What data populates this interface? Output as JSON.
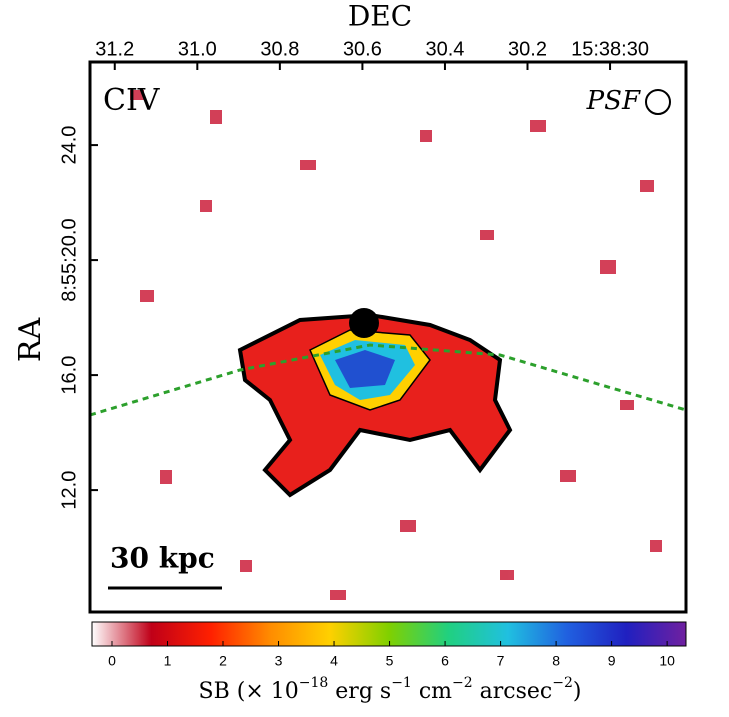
{
  "chart_data": {
    "type": "image",
    "x_label": "DEC",
    "y_label": "RA",
    "xlim": [
      31.26,
      29.816
    ],
    "xticks": [
      31.2,
      {
        "value": 31.0,
        "label": "31.0"
      },
      30.8,
      30.6,
      30.4,
      30.2,
      {
        "value": 30.0,
        "label": "15:38:30"
      }
    ],
    "ylim": [
      7.76,
      26.89
    ],
    "yticks": [
      {
        "value": 24.0,
        "label": "24.0"
      },
      {
        "value": 20.0,
        "label": "8:55:20.0"
      },
      {
        "value": 16.0,
        "label": "16.0"
      },
      {
        "value": 12.0,
        "label": "12.0"
      }
    ],
    "annotations": {
      "line": "CIV",
      "psf": "PSF",
      "scale": "30 kpc"
    },
    "colorbar": {
      "lim": [
        -0.36,
        10.34
      ],
      "ticks": [
        0,
        1,
        2,
        3,
        4,
        5,
        6,
        7,
        8,
        9,
        10
      ],
      "colors": [
        "#ffffff",
        "#c00018",
        "#ff2000",
        "#ff8c00",
        "#ffd000",
        "#80d000",
        "#20d080",
        "#20c0e0",
        "#2060e0",
        "#2020c0",
        "#7020a0"
      ],
      "label": [
        "SB (× 10",
        "−18",
        " erg s",
        "−1",
        " cm",
        "−2",
        " arcsec",
        "−2",
        ")"
      ]
    }
  }
}
